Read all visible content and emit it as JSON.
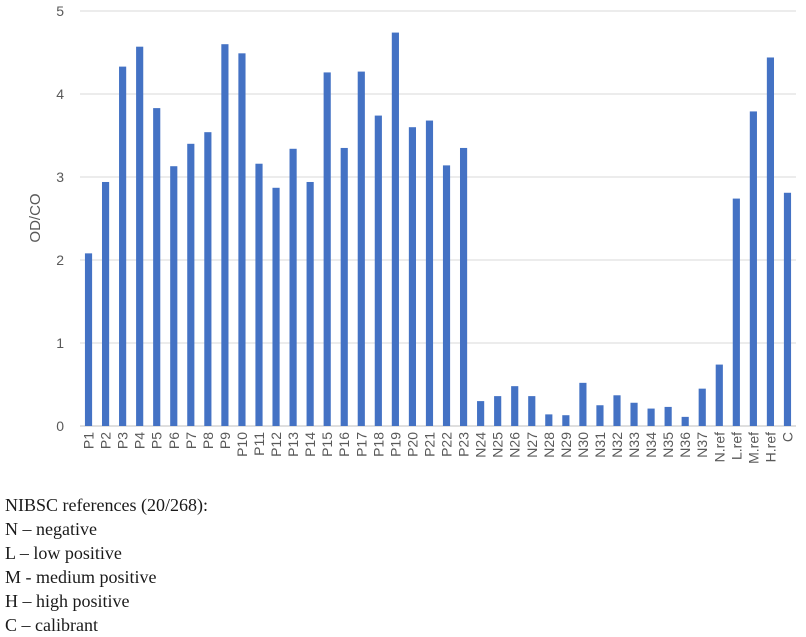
{
  "chart_data": {
    "type": "bar",
    "title": "",
    "xlabel": "",
    "ylabel": "OD/CO",
    "ylim": [
      0,
      5
    ],
    "yticks": [
      "0",
      "1",
      "2",
      "3",
      "4",
      "5"
    ],
    "grid": true,
    "bar_color": "#4472C4",
    "categories": [
      "P1",
      "P2",
      "P3",
      "P4",
      "P5",
      "P6",
      "P7",
      "P8",
      "P9",
      "P10",
      "P11",
      "P12",
      "P13",
      "P14",
      "P15",
      "P16",
      "P17",
      "P18",
      "P19",
      "P20",
      "P21",
      "P22",
      "P23",
      "N24",
      "N25",
      "N26",
      "N27",
      "N28",
      "N29",
      "N30",
      "N31",
      "N32",
      "N33",
      "N34",
      "N35",
      "N36",
      "N37",
      "N.ref",
      "L.ref",
      "M.ref",
      "H.ref",
      "C"
    ],
    "values": [
      2.08,
      2.94,
      4.33,
      4.57,
      3.83,
      3.13,
      3.4,
      3.54,
      4.6,
      4.49,
      3.16,
      2.87,
      3.34,
      2.94,
      4.26,
      3.35,
      4.27,
      3.74,
      4.74,
      3.6,
      3.68,
      3.14,
      3.35,
      0.3,
      0.36,
      0.48,
      0.36,
      0.14,
      0.13,
      0.52,
      0.25,
      0.37,
      0.28,
      0.21,
      0.23,
      0.11,
      0.45,
      0.74,
      2.74,
      3.79,
      4.44,
      2.81
    ]
  },
  "notes": {
    "heading": "NIBSC references (20/268):",
    "items": [
      "N – negative",
      "L – low positive",
      "M - medium positive",
      "H – high positive",
      "C – calibrant"
    ]
  }
}
